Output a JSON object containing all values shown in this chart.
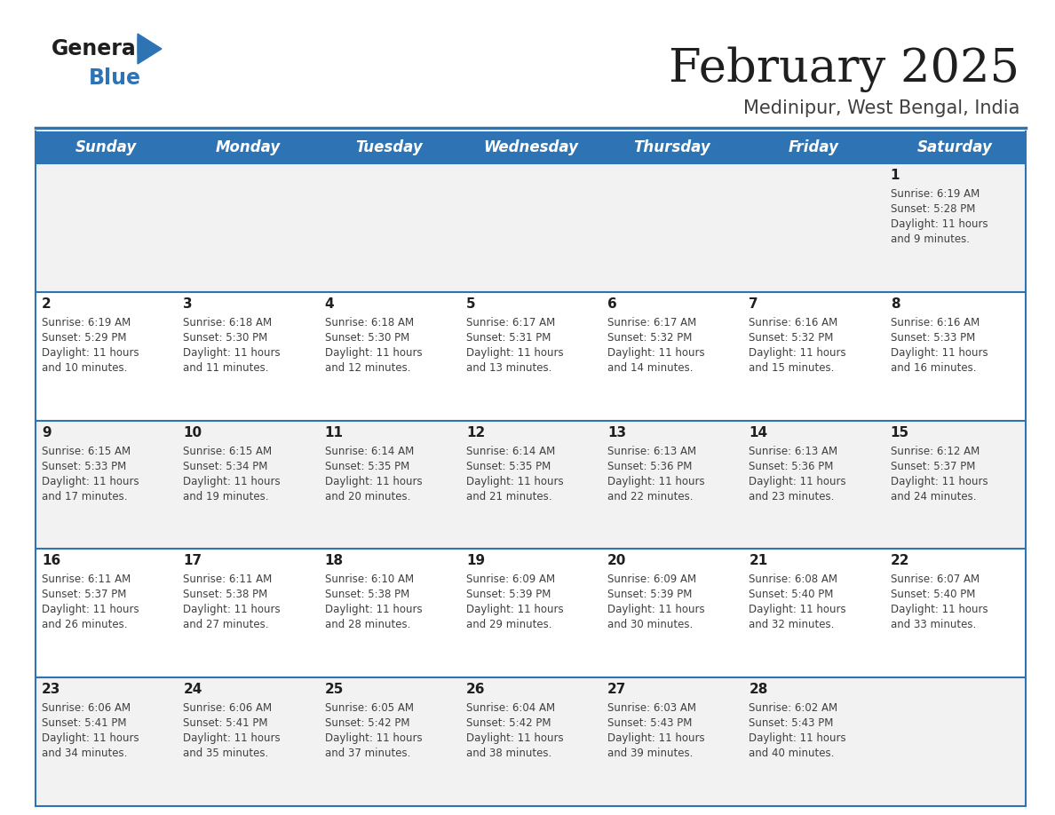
{
  "title": "February 2025",
  "subtitle": "Medinipur, West Bengal, India",
  "header_bg": "#2E74B5",
  "header_text_color": "#FFFFFF",
  "bg_color": "#FFFFFF",
  "row_colors": [
    "#F2F2F2",
    "#FFFFFF",
    "#F2F2F2",
    "#FFFFFF",
    "#F2F2F2"
  ],
  "grid_line_color": "#2E74B5",
  "day_headers": [
    "Sunday",
    "Monday",
    "Tuesday",
    "Wednesday",
    "Thursday",
    "Friday",
    "Saturday"
  ],
  "title_color": "#1F1F1F",
  "subtitle_color": "#404040",
  "day_num_color": "#1F1F1F",
  "info_text_color": "#404040",
  "logo_general_color": "#1F1F1F",
  "logo_blue_color": "#2E74B5",
  "calendar_data": [
    [
      null,
      null,
      null,
      null,
      null,
      null,
      {
        "day": 1,
        "sunrise": "6:19 AM",
        "sunset": "5:28 PM",
        "daylight": "11 hours and 9 minutes."
      }
    ],
    [
      {
        "day": 2,
        "sunrise": "6:19 AM",
        "sunset": "5:29 PM",
        "daylight": "11 hours and 10 minutes."
      },
      {
        "day": 3,
        "sunrise": "6:18 AM",
        "sunset": "5:30 PM",
        "daylight": "11 hours and 11 minutes."
      },
      {
        "day": 4,
        "sunrise": "6:18 AM",
        "sunset": "5:30 PM",
        "daylight": "11 hours and 12 minutes."
      },
      {
        "day": 5,
        "sunrise": "6:17 AM",
        "sunset": "5:31 PM",
        "daylight": "11 hours and 13 minutes."
      },
      {
        "day": 6,
        "sunrise": "6:17 AM",
        "sunset": "5:32 PM",
        "daylight": "11 hours and 14 minutes."
      },
      {
        "day": 7,
        "sunrise": "6:16 AM",
        "sunset": "5:32 PM",
        "daylight": "11 hours and 15 minutes."
      },
      {
        "day": 8,
        "sunrise": "6:16 AM",
        "sunset": "5:33 PM",
        "daylight": "11 hours and 16 minutes."
      }
    ],
    [
      {
        "day": 9,
        "sunrise": "6:15 AM",
        "sunset": "5:33 PM",
        "daylight": "11 hours and 17 minutes."
      },
      {
        "day": 10,
        "sunrise": "6:15 AM",
        "sunset": "5:34 PM",
        "daylight": "11 hours and 19 minutes."
      },
      {
        "day": 11,
        "sunrise": "6:14 AM",
        "sunset": "5:35 PM",
        "daylight": "11 hours and 20 minutes."
      },
      {
        "day": 12,
        "sunrise": "6:14 AM",
        "sunset": "5:35 PM",
        "daylight": "11 hours and 21 minutes."
      },
      {
        "day": 13,
        "sunrise": "6:13 AM",
        "sunset": "5:36 PM",
        "daylight": "11 hours and 22 minutes."
      },
      {
        "day": 14,
        "sunrise": "6:13 AM",
        "sunset": "5:36 PM",
        "daylight": "11 hours and 23 minutes."
      },
      {
        "day": 15,
        "sunrise": "6:12 AM",
        "sunset": "5:37 PM",
        "daylight": "11 hours and 24 minutes."
      }
    ],
    [
      {
        "day": 16,
        "sunrise": "6:11 AM",
        "sunset": "5:37 PM",
        "daylight": "11 hours and 26 minutes."
      },
      {
        "day": 17,
        "sunrise": "6:11 AM",
        "sunset": "5:38 PM",
        "daylight": "11 hours and 27 minutes."
      },
      {
        "day": 18,
        "sunrise": "6:10 AM",
        "sunset": "5:38 PM",
        "daylight": "11 hours and 28 minutes."
      },
      {
        "day": 19,
        "sunrise": "6:09 AM",
        "sunset": "5:39 PM",
        "daylight": "11 hours and 29 minutes."
      },
      {
        "day": 20,
        "sunrise": "6:09 AM",
        "sunset": "5:39 PM",
        "daylight": "11 hours and 30 minutes."
      },
      {
        "day": 21,
        "sunrise": "6:08 AM",
        "sunset": "5:40 PM",
        "daylight": "11 hours and 32 minutes."
      },
      {
        "day": 22,
        "sunrise": "6:07 AM",
        "sunset": "5:40 PM",
        "daylight": "11 hours and 33 minutes."
      }
    ],
    [
      {
        "day": 23,
        "sunrise": "6:06 AM",
        "sunset": "5:41 PM",
        "daylight": "11 hours and 34 minutes."
      },
      {
        "day": 24,
        "sunrise": "6:06 AM",
        "sunset": "5:41 PM",
        "daylight": "11 hours and 35 minutes."
      },
      {
        "day": 25,
        "sunrise": "6:05 AM",
        "sunset": "5:42 PM",
        "daylight": "11 hours and 37 minutes."
      },
      {
        "day": 26,
        "sunrise": "6:04 AM",
        "sunset": "5:42 PM",
        "daylight": "11 hours and 38 minutes."
      },
      {
        "day": 27,
        "sunrise": "6:03 AM",
        "sunset": "5:43 PM",
        "daylight": "11 hours and 39 minutes."
      },
      {
        "day": 28,
        "sunrise": "6:02 AM",
        "sunset": "5:43 PM",
        "daylight": "11 hours and 40 minutes."
      },
      null
    ]
  ]
}
